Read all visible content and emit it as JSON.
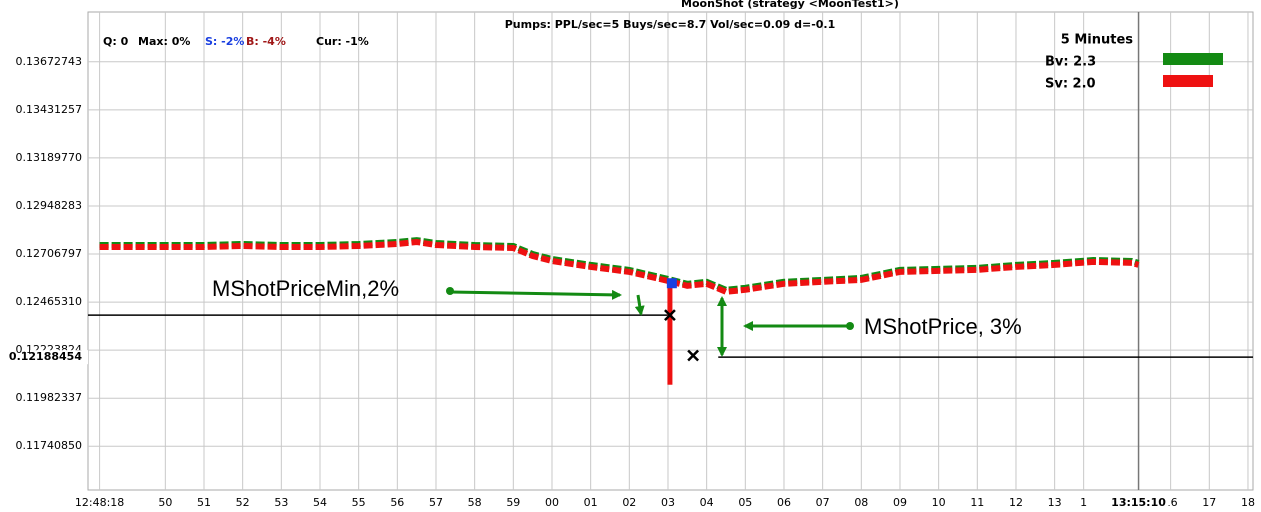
{
  "chart_data": {
    "type": "line",
    "title": "MoonShot (strategy <MoonTest1>)",
    "subtitle": "Pumps: PPL/sec=5 Buys/sec=8.7  Vol/sec=0.09  d=-0.1",
    "status": [
      "Q: 0",
      "Max: 0%",
      "S: -2%",
      "B: -4%",
      "Cur: -1%"
    ],
    "legend_title": "5 Minutes",
    "x": [
      48.3,
      49,
      50,
      51,
      52,
      53,
      54,
      55,
      56,
      56.5,
      57,
      58,
      59,
      59.5,
      60,
      61,
      62,
      63,
      63.5,
      64,
      64.5,
      65,
      66,
      67,
      68,
      69,
      70,
      71,
      72,
      73,
      74,
      75,
      75.17
    ],
    "series": [
      {
        "name": "Bv: 2.3",
        "color": "#138a13",
        "values": [
          0.12752,
          0.12752,
          0.12752,
          0.12752,
          0.12757,
          0.12752,
          0.12752,
          0.12757,
          0.12767,
          0.12777,
          0.12762,
          0.12752,
          0.12747,
          0.12707,
          0.12682,
          0.12652,
          0.12627,
          0.12582,
          0.12557,
          0.12567,
          0.12527,
          0.12537,
          0.12567,
          0.12577,
          0.12587,
          0.12627,
          0.12632,
          0.12637,
          0.12652,
          0.12662,
          0.12677,
          0.12672,
          0.12662
        ]
      },
      {
        "name": "Sv: 2.0",
        "color": "#ee1111",
        "values": [
          0.12742,
          0.12742,
          0.12742,
          0.12742,
          0.12747,
          0.12742,
          0.12742,
          0.12747,
          0.12757,
          0.12767,
          0.12752,
          0.12742,
          0.12737,
          0.12697,
          0.12672,
          0.12642,
          0.12617,
          0.12572,
          0.12547,
          0.12557,
          0.12517,
          0.12527,
          0.12557,
          0.12567,
          0.12577,
          0.12617,
          0.12622,
          0.12627,
          0.12642,
          0.12652,
          0.12667,
          0.12662,
          0.12652
        ]
      }
    ],
    "spike": {
      "x": 63.05,
      "high": 0.1258,
      "low": 0.1205
    },
    "buy_marker": {
      "x": 63.1,
      "value": 0.1256,
      "color": "#1a3fe0"
    },
    "crosses": [
      {
        "x": 63.05,
        "value": 0.124
      },
      {
        "x": 63.65,
        "value": 0.12197
      }
    ],
    "levels": [
      {
        "value": 0.124,
        "from": 48,
        "to": 63.05
      },
      {
        "value": 0.12188454,
        "from": 64.3,
        "to": 78.13
      }
    ],
    "annotations": [
      "MShotPriceMin,2%",
      "MShotPrice, 3%"
    ],
    "now": {
      "value": 75.17,
      "label": "13:15:10"
    },
    "xlim": [
      48,
      78.13
    ],
    "ylim": [
      0.11521,
      0.13923
    ],
    "yticks": [
      0.13672743,
      0.13431257,
      {
        "value": 0.1318977,
        "label": "0.13189770"
      },
      0.12948283,
      0.12706797,
      {
        "value": 0.1246531,
        "label": "0.12465310"
      },
      0.12223824,
      0.11982337,
      {
        "value": 0.1174085,
        "label": "0.11740850"
      }
    ],
    "xticks": [
      {
        "value": 48.3,
        "label": "12:48:18"
      },
      50,
      51,
      52,
      53,
      54,
      55,
      56,
      57,
      58,
      59,
      {
        "value": 60,
        "label": "00"
      },
      {
        "value": 61,
        "label": "01"
      },
      {
        "value": 62,
        "label": "02"
      },
      {
        "value": 63,
        "label": "03"
      },
      {
        "value": 64,
        "label": "04"
      },
      {
        "value": 65,
        "label": "05"
      },
      {
        "value": 66,
        "label": "06"
      },
      {
        "value": 67,
        "label": "07"
      },
      {
        "value": 68,
        "label": "08"
      },
      {
        "value": 69,
        "label": "09"
      },
      {
        "value": 70,
        "label": "10"
      },
      {
        "value": 71,
        "label": "11"
      },
      {
        "value": 72,
        "label": "12"
      },
      {
        "value": 73,
        "label": "13"
      },
      {
        "value": 73.75,
        "label": "1"
      },
      {
        "value": 76,
        "label": "16"
      },
      {
        "value": 77,
        "label": "17"
      },
      {
        "value": 78,
        "label": "18"
      }
    ],
    "grid": true
  }
}
